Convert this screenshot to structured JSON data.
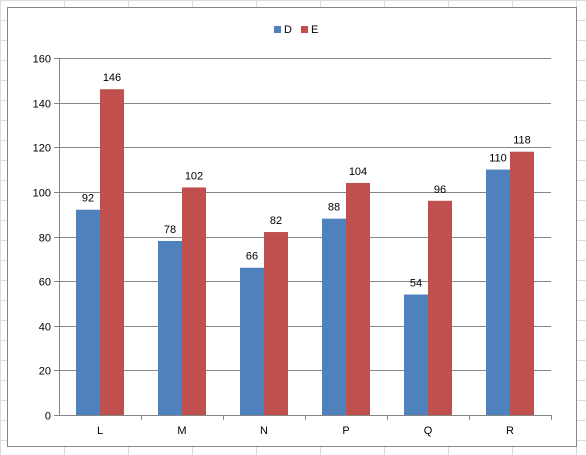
{
  "chart_data": {
    "type": "bar",
    "categories": [
      "L",
      "M",
      "N",
      "P",
      "Q",
      "R"
    ],
    "series": [
      {
        "name": "D",
        "values": [
          92,
          78,
          66,
          88,
          54,
          110
        ],
        "color": "#4f81bd"
      },
      {
        "name": "E",
        "values": [
          146,
          102,
          82,
          104,
          96,
          118
        ],
        "color": "#c0504d"
      }
    ],
    "title": "",
    "xlabel": "",
    "ylabel": "",
    "ylim": [
      0,
      160
    ],
    "yticks": [
      "0",
      "20",
      "40",
      "60",
      "80",
      "100",
      "120",
      "140",
      "160"
    ],
    "grid": true,
    "legend_position": "top"
  }
}
